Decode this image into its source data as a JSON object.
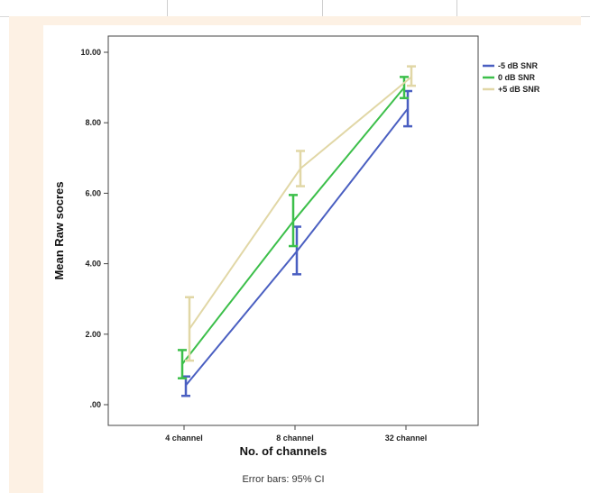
{
  "chart_data": {
    "type": "line",
    "title": "",
    "xlabel": "No. of channels",
    "ylabel": "Mean Raw socres",
    "categories": [
      "4 channel",
      "8 channel",
      "32 channel"
    ],
    "ylim": [
      0,
      10
    ],
    "yticks": [
      0,
      2,
      4,
      6,
      8,
      10
    ],
    "ytick_labels": [
      ".00",
      "2.00",
      "4.00",
      "6.00",
      "8.00",
      "10.00"
    ],
    "grid": false,
    "legend_position": "right",
    "series": [
      {
        "name": "-5 dB SNR",
        "color": "#4a5fc1",
        "values": [
          0.55,
          4.35,
          8.4
        ],
        "ci_low": [
          0.25,
          3.7,
          7.9
        ],
        "ci_high": [
          0.8,
          5.05,
          8.9
        ]
      },
      {
        "name": "0 dB SNR",
        "color": "#3cbf4a",
        "values": [
          1.15,
          5.2,
          9.0
        ],
        "ci_low": [
          0.75,
          4.5,
          8.7
        ],
        "ci_high": [
          1.55,
          5.95,
          9.3
        ]
      },
      {
        "name": "+5 dB SNR",
        "color": "#e1d7a6",
        "values": [
          2.15,
          6.7,
          9.3
        ],
        "ci_low": [
          1.25,
          6.2,
          9.05
        ],
        "ci_high": [
          3.05,
          7.2,
          9.6
        ]
      }
    ],
    "footnote": "Error bars: 95% CI"
  }
}
